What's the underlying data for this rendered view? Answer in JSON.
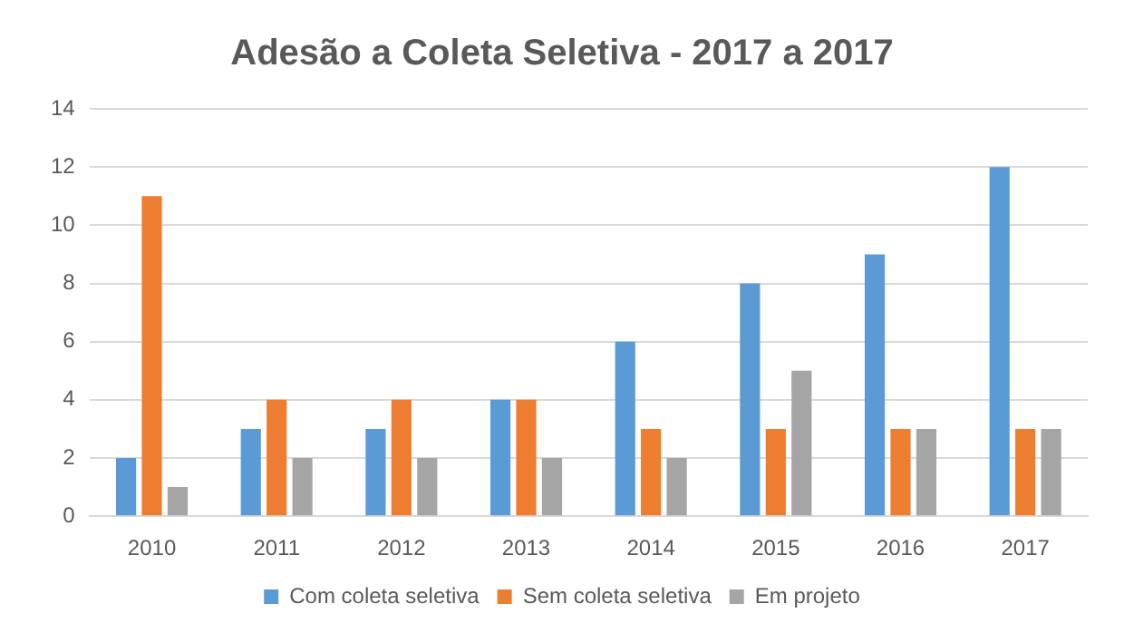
{
  "chart_data": {
    "type": "bar",
    "title": "Adesão a Coleta Seletiva - 2017 a 2017",
    "categories": [
      "2010",
      "2011",
      "2012",
      "2013",
      "2014",
      "2015",
      "2016",
      "2017"
    ],
    "series": [
      {
        "name": "Com coleta seletiva",
        "color": "#5b9bd5",
        "values": [
          2,
          3,
          3,
          4,
          6,
          8,
          9,
          12
        ]
      },
      {
        "name": "Sem coleta seletiva",
        "color": "#ed7d31",
        "values": [
          11,
          4,
          4,
          4,
          3,
          3,
          3,
          3
        ]
      },
      {
        "name": "Em projeto",
        "color": "#a5a5a5",
        "values": [
          1,
          2,
          2,
          2,
          2,
          5,
          3,
          3
        ]
      }
    ],
    "ylim": [
      0,
      14
    ],
    "yticks": [
      0,
      2,
      4,
      6,
      8,
      10,
      12,
      14
    ],
    "grid": "y",
    "legend": "bottom"
  }
}
